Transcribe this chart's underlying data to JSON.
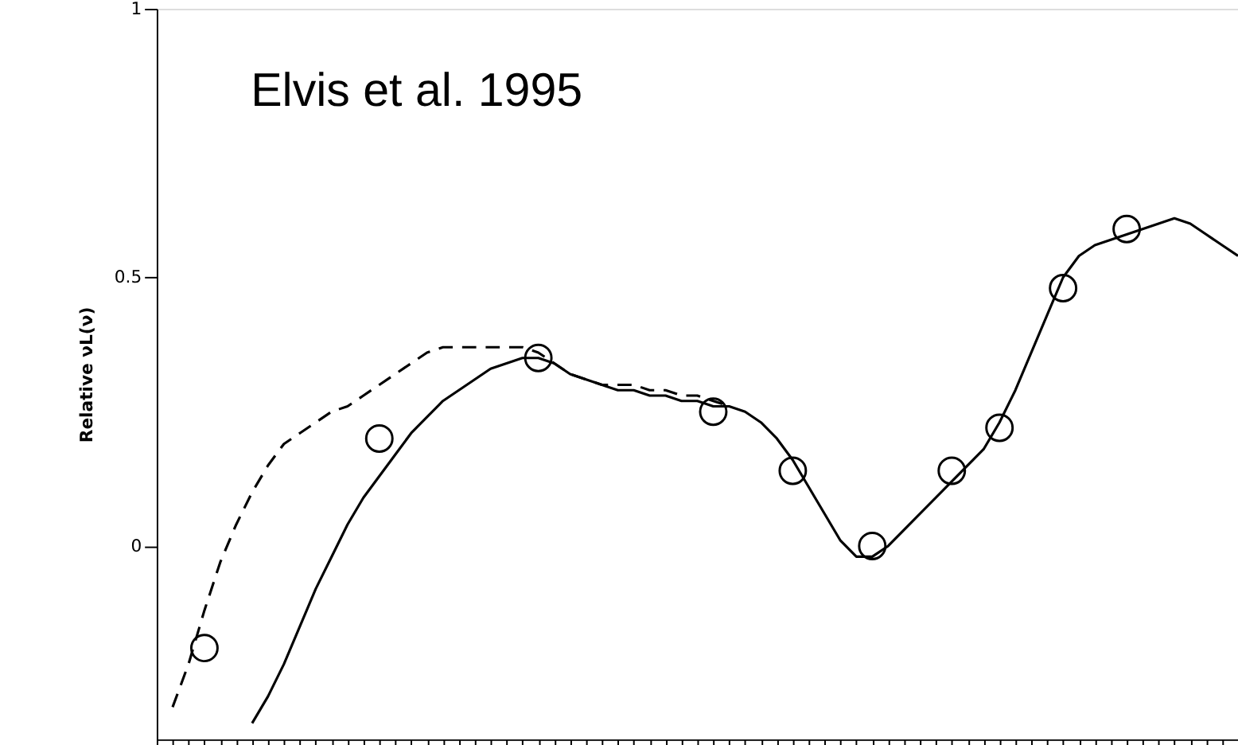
{
  "chart_data": {
    "type": "line",
    "ylabel": "Relative νL(ν)",
    "annotations": [
      "Elvis et al. 1995"
    ],
    "categories": [
      null,
      null,
      null,
      null,
      null,
      null,
      null,
      null,
      null,
      null,
      null,
      null,
      null,
      null,
      null,
      null,
      null,
      null,
      null,
      null,
      null,
      null,
      null,
      null,
      null,
      null,
      null,
      null,
      null,
      null,
      null,
      null,
      null,
      null,
      null,
      null,
      null,
      null,
      null,
      null,
      null,
      null,
      null,
      null,
      null,
      null,
      null,
      null,
      null,
      null,
      null,
      null,
      null,
      null,
      null,
      null,
      null,
      null,
      null,
      null,
      null,
      null,
      null,
      null,
      null,
      null,
      null,
      null,
      null
    ],
    "series": [
      {
        "line_style": "solid",
        "color": "#000000",
        "values": [
          null,
          null,
          null,
          null,
          null,
          null,
          -0.33,
          -0.28,
          -0.22,
          -0.15,
          -0.08,
          -0.02,
          0.04,
          0.09,
          0.13,
          0.17,
          0.21,
          0.24,
          0.27,
          0.29,
          0.31,
          0.33,
          0.34,
          0.35,
          0.35,
          0.34,
          0.32,
          0.31,
          0.3,
          0.29,
          0.29,
          0.28,
          0.28,
          0.27,
          0.27,
          0.26,
          0.26,
          0.25,
          0.23,
          0.2,
          0.16,
          0.11,
          0.06,
          0.01,
          -0.02,
          -0.02,
          0.0,
          0.03,
          0.06,
          0.09,
          0.12,
          0.15,
          0.18,
          0.23,
          0.29,
          0.36,
          0.43,
          0.5,
          0.54,
          0.56,
          0.57,
          0.58,
          0.59,
          0.6,
          0.61,
          0.6,
          0.58,
          0.56,
          0.54
        ]
      },
      {
        "line_style": "dashed",
        "color": "#000000",
        "values": [
          null,
          -0.3,
          -0.22,
          -0.12,
          -0.03,
          0.04,
          0.1,
          0.15,
          0.19,
          0.21,
          0.23,
          0.25,
          0.26,
          0.28,
          0.3,
          0.32,
          0.34,
          0.36,
          0.37,
          0.37,
          0.37,
          0.37,
          0.37,
          0.37,
          0.36,
          0.34,
          0.32,
          0.31,
          0.3,
          0.3,
          0.3,
          0.29,
          0.29,
          0.28,
          0.28,
          0.27,
          0.26,
          null,
          null,
          null,
          null,
          null,
          null,
          null,
          null,
          null,
          null,
          null,
          null,
          null,
          null,
          null,
          null,
          null,
          null,
          null,
          null,
          null,
          null,
          null,
          null,
          null,
          null,
          null,
          null,
          null,
          null,
          null,
          null
        ]
      },
      {
        "type": "scatter",
        "marker": "circle",
        "color": "#000000",
        "values": [
          null,
          null,
          null,
          -0.19,
          null,
          null,
          null,
          null,
          null,
          null,
          null,
          null,
          null,
          null,
          0.2,
          null,
          null,
          null,
          null,
          null,
          null,
          null,
          null,
          null,
          0.35,
          null,
          null,
          null,
          null,
          null,
          null,
          null,
          null,
          null,
          null,
          0.25,
          null,
          null,
          null,
          null,
          0.14,
          null,
          null,
          null,
          null,
          0.0,
          null,
          null,
          null,
          null,
          0.14,
          null,
          null,
          0.22,
          null,
          null,
          null,
          0.48,
          null,
          null,
          null,
          0.59,
          null,
          null,
          null,
          null,
          null,
          null,
          null
        ]
      }
    ],
    "ylim": [
      -0.36,
      1
    ],
    "yticks": [
      0,
      0.5,
      1
    ],
    "tick_labels": "y",
    "grid": false
  }
}
